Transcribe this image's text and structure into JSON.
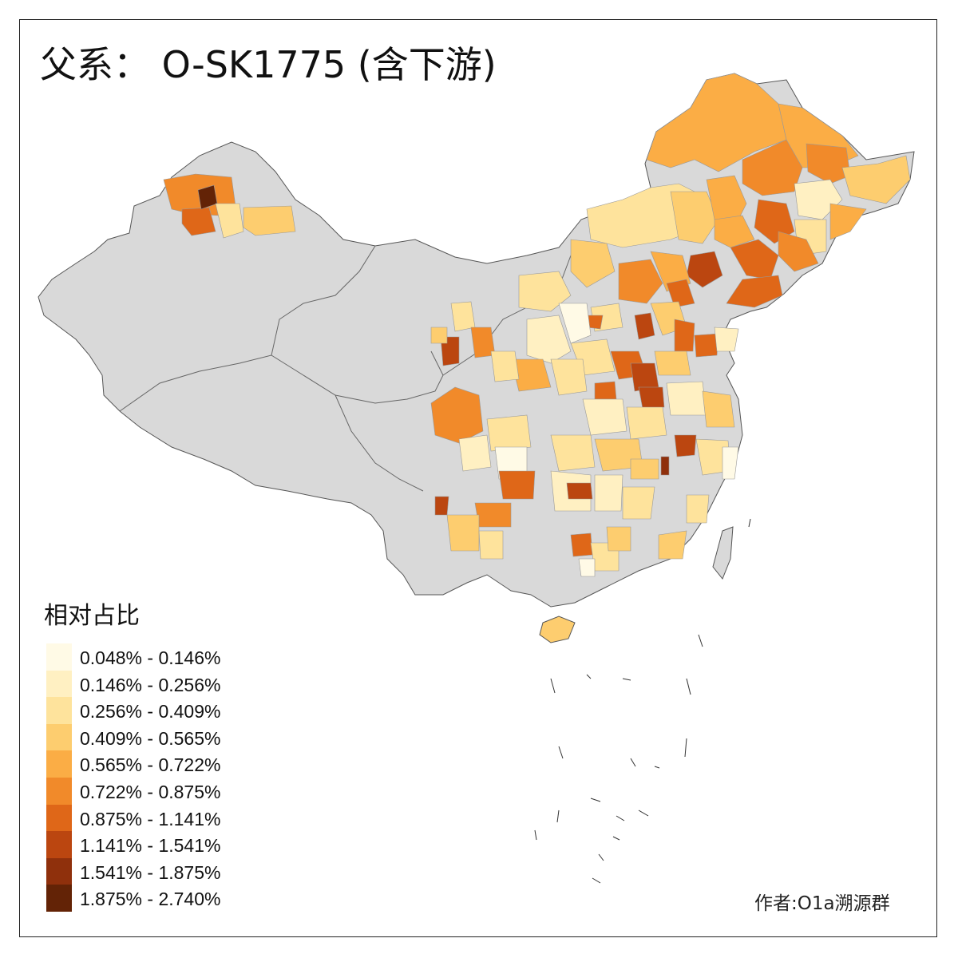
{
  "map": {
    "title": "父系： O-SK1775 (含下游)",
    "credit": "作者:O1a溯源群",
    "no_data_color": "#d9d9d9",
    "legend": {
      "title": "相对占比",
      "items": [
        {
          "label": "0.048% - 0.146%",
          "color": "#fffae6"
        },
        {
          "label": "0.146% - 0.256%",
          "color": "#fff0c2"
        },
        {
          "label": "0.256% - 0.409%",
          "color": "#fee39c"
        },
        {
          "label": "0.409% - 0.565%",
          "color": "#fdcd6f"
        },
        {
          "label": "0.565% - 0.722%",
          "color": "#fbad45"
        },
        {
          "label": "0.722% - 0.875%",
          "color": "#f18a2a"
        },
        {
          "label": "0.875% - 1.141%",
          "color": "#df6718"
        },
        {
          "label": "1.141% - 1.541%",
          "color": "#bb4610"
        },
        {
          "label": "1.541% - 1.875%",
          "color": "#8f300c"
        },
        {
          "label": "1.875% - 2.740%",
          "color": "#632306"
        }
      ]
    }
  }
}
